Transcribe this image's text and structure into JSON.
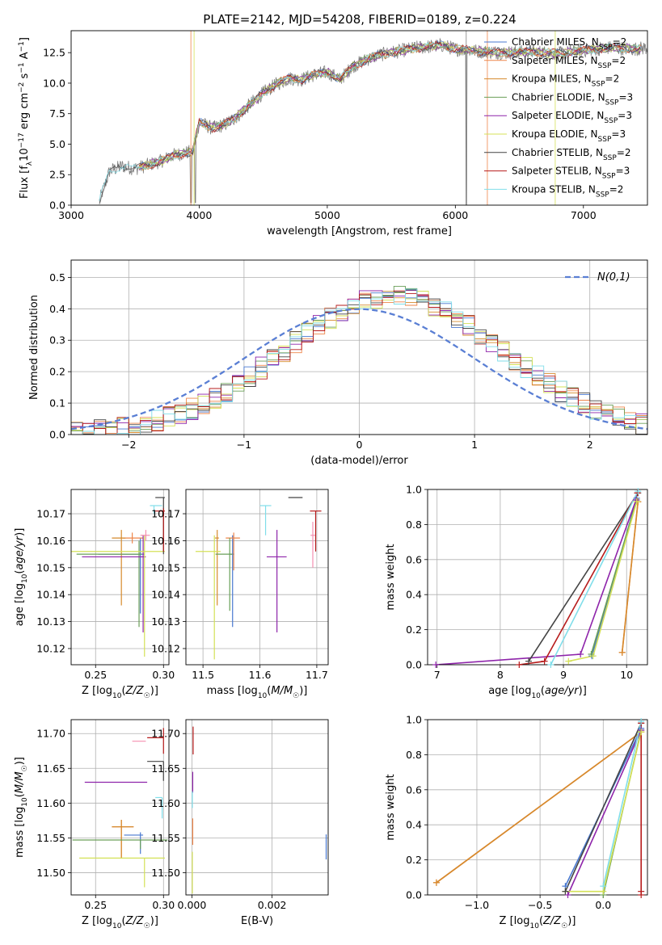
{
  "figure": {
    "title": "PLATE=2142, MJD=54208, FIBERID=0189, z=0.224"
  },
  "chart_data": [
    {
      "id": "spectrum",
      "type": "line",
      "title": "PLATE=2142, MJD=54208, FIBERID=0189, z=0.224",
      "xlabel": "wavelength [Angstrom, rest frame]",
      "ylabel": "Flux [f_λ 10^-17 erg cm^-2 s^-1 A^-1]",
      "xlim": [
        3000,
        7500
      ],
      "ylim": [
        0,
        14.3
      ],
      "xticks": [
        3000,
        4000,
        5000,
        6000,
        7000
      ],
      "yticks": [
        0.0,
        2.5,
        5.0,
        7.5,
        10.0,
        12.5
      ],
      "grid": false,
      "legend_position": "upper-right",
      "data_x": [
        3220,
        3300,
        3400,
        3500,
        3600,
        3700,
        3800,
        3900,
        3950,
        4000,
        4100,
        4200,
        4300,
        4400,
        4500,
        4600,
        4700,
        4800,
        4900,
        5000,
        5100,
        5200,
        5300,
        5400,
        5500,
        5600,
        5700,
        5800,
        5900,
        6000,
        6200,
        6400,
        6600,
        6800,
        7000,
        7200,
        7400,
        7500
      ],
      "data_y": [
        0.3,
        2.8,
        3.2,
        3.0,
        3.3,
        3.6,
        4.1,
        4.3,
        4.4,
        6.8,
        6.3,
        6.6,
        7.3,
        8.3,
        9.2,
        9.9,
        10.4,
        10.3,
        10.7,
        10.9,
        10.3,
        11.4,
        11.9,
        12.3,
        12.5,
        12.7,
        12.9,
        13.0,
        13.1,
        12.8,
        12.6,
        12.5,
        12.6,
        12.4,
        12.7,
        12.9,
        12.8,
        12.9
      ],
      "series": [
        {
          "name": "Chabrier MILES, N_SSP=2",
          "label": "Chabrier MILES, N",
          "sub": "SSP",
          "suffix": "=2",
          "color": "#4878d0",
          "start": 3530
        },
        {
          "name": "Salpeter MILES, N_SSP=2",
          "label": "Salpeter MILES, N",
          "sub": "SSP",
          "suffix": "=2",
          "color": "#ee854a",
          "start": 3530
        },
        {
          "name": "Kroupa MILES, N_SSP=2",
          "label": "Kroupa MILES, N",
          "sub": "SSP",
          "suffix": "=2",
          "color": "#d68a2c",
          "start": 3530
        },
        {
          "name": "Chabrier ELODIE, N_SSP=3",
          "label": "Chabrier ELODIE, N",
          "sub": "SSP",
          "suffix": "=3",
          "color": "#6a9f58",
          "start": 3530
        },
        {
          "name": "Salpeter ELODIE, N_SSP=3",
          "label": "Salpeter ELODIE, N",
          "sub": "SSP",
          "suffix": "=3",
          "color": "#8e24aa",
          "start": 3530
        },
        {
          "name": "Kroupa ELODIE, N_SSP=3",
          "label": "Kroupa ELODIE, N",
          "sub": "SSP",
          "suffix": "=3",
          "color": "#d4e157",
          "start": 3530
        },
        {
          "name": "Chabrier STELIB, N_SSP=2",
          "label": "Chabrier STELIB, N",
          "sub": "SSP",
          "suffix": "=2",
          "color": "#444444",
          "start": 3220
        },
        {
          "name": "Salpeter STELIB, N_SSP=3",
          "label": "Salpeter STELIB, N",
          "sub": "SSP",
          "suffix": "=3",
          "color": "#b71c1c",
          "start": 3530
        },
        {
          "name": "Kroupa STELIB, N_SSP=2",
          "label": "Kroupa STELIB, N",
          "sub": "SSP",
          "suffix": "=2",
          "color": "#80deea",
          "start": 3220
        }
      ]
    },
    {
      "id": "residuals",
      "type": "line",
      "xlabel": "(data-model)/error",
      "ylabel": "Normed distribution",
      "xlim": [
        -2.5,
        2.5
      ],
      "ylim": [
        0,
        0.555
      ],
      "xticks": [
        -2,
        -1,
        0,
        1,
        2
      ],
      "yticks": [
        0.0,
        0.1,
        0.2,
        0.3,
        0.4,
        0.5
      ],
      "grid": true,
      "legend_position": "upper-right",
      "normal_label": "N(0,1)",
      "normal_color": "#5a7fd4",
      "hist_colors": [
        "#4878d0",
        "#ee854a",
        "#d68a2c",
        "#6a9f58",
        "#8e24aa",
        "#d4e157",
        "#444444",
        "#b71c1c",
        "#80deea"
      ],
      "hist_peak": 0.44
    },
    {
      "id": "Z-age",
      "type": "scatter",
      "xlabel": "Z [log10(Z/Z☉)]",
      "ylabel": "age [log10(age/yr)]",
      "xlim": [
        0.232,
        0.304
      ],
      "ylim": [
        10.114,
        10.179
      ],
      "xticks": [
        0.25,
        0.3
      ],
      "xtick_labels": [
        "0.25",
        "0.30"
      ],
      "yticks": [
        10.12,
        10.13,
        10.14,
        10.15,
        10.16,
        10.17
      ],
      "grid": true,
      "points": [
        {
          "color": "#4878d0",
          "x": 0.283,
          "xerr": [
            0.031,
            0.003
          ],
          "y": 10.155,
          "yerr": [
            0.022,
            0.006
          ]
        },
        {
          "color": "#ee854a",
          "x": 0.277,
          "xerr": [
            0.007,
            0.008
          ],
          "y": 10.161,
          "yerr": [
            0.002,
            0.002
          ]
        },
        {
          "color": "#d68a2c",
          "x": 0.269,
          "xerr": [
            0.007,
            0.003
          ],
          "y": 10.161,
          "yerr": [
            0.025,
            0.003
          ]
        },
        {
          "color": "#6a9f58",
          "x": 0.282,
          "xerr": [
            0.046,
            0.002
          ],
          "y": 10.155,
          "yerr": [
            0.027,
            0.005
          ]
        },
        {
          "color": "#8e24aa",
          "x": 0.285,
          "xerr": [
            0.045,
            0.002
          ],
          "y": 10.154,
          "yerr": [
            0.028,
            0.008
          ]
        },
        {
          "color": "#d4e157",
          "x": 0.286,
          "xerr": [
            0.056,
            0.015
          ],
          "y": 10.156,
          "yerr": [
            0.039,
            0.006
          ]
        },
        {
          "color": "#444444",
          "x": 0.3,
          "xerr": [
            0.006,
            0.001
          ],
          "y": 10.176,
          "yerr": [
            0.021,
            0.0
          ]
        },
        {
          "color": "#b71c1c",
          "x": 0.3,
          "xerr": [
            0.006,
            0.001
          ],
          "y": 10.171,
          "yerr": [
            0.015,
            0.001
          ]
        },
        {
          "color": "#80deea",
          "x": 0.293,
          "xerr": [
            0.003,
            0.006
          ],
          "y": 10.173,
          "yerr": [
            0.003,
            0.0
          ]
        },
        {
          "color": "#f48fb1",
          "x": 0.287,
          "xerr": [
            0.004,
            0.003
          ],
          "y": 10.162,
          "yerr": [
            0.002,
            0.002
          ]
        }
      ]
    },
    {
      "id": "mass-age",
      "type": "scatter",
      "xlabel": "mass [log10(M/M☉)]",
      "ylabel": "",
      "xlim": [
        11.47,
        11.72
      ],
      "ylim": [
        10.114,
        10.179
      ],
      "xticks": [
        11.5,
        11.6,
        11.7
      ],
      "xtick_labels": [
        "11.5",
        "11.6",
        "11.7"
      ],
      "yticks": [
        10.12,
        10.13,
        10.14,
        10.15,
        10.16,
        10.17
      ],
      "grid": true,
      "points": [
        {
          "color": "#4878d0",
          "x": 11.552,
          "xerr": [
            0.006,
            0.003
          ],
          "y": 10.155,
          "yerr": [
            0.027,
            0.007
          ]
        },
        {
          "color": "#ee854a",
          "x": 11.554,
          "xerr": [
            0.014,
            0.011
          ],
          "y": 10.161,
          "yerr": [
            0.012,
            0.002
          ]
        },
        {
          "color": "#d68a2c",
          "x": 11.525,
          "xerr": [
            0.004,
            0.003
          ],
          "y": 10.161,
          "yerr": [
            0.025,
            0.003
          ]
        },
        {
          "color": "#6a9f58",
          "x": 11.547,
          "xerr": [
            0.025,
            0.005
          ],
          "y": 10.155,
          "yerr": [
            0.021,
            0.006
          ]
        },
        {
          "color": "#8e24aa",
          "x": 11.63,
          "xerr": [
            0.018,
            0.017
          ],
          "y": 10.154,
          "yerr": [
            0.028,
            0.01
          ]
        },
        {
          "color": "#d4e157",
          "x": 11.52,
          "xerr": [
            0.033,
            0.011
          ],
          "y": 10.156,
          "yerr": [
            0.04,
            0.006
          ]
        },
        {
          "color": "#444444",
          "x": 11.66,
          "xerr": [
            0.01,
            0.015
          ],
          "y": 10.176,
          "yerr": [
            0.0,
            0.0
          ]
        },
        {
          "color": "#b71c1c",
          "x": 11.698,
          "xerr": [
            0.01,
            0.01
          ],
          "y": 10.171,
          "yerr": [
            0.015,
            0.0
          ]
        },
        {
          "color": "#80deea",
          "x": 11.61,
          "xerr": [
            0.01,
            0.01
          ],
          "y": 10.173,
          "yerr": [
            0.011,
            0.0
          ]
        },
        {
          "color": "#f48fb1",
          "x": 11.693,
          "xerr": [
            0.004,
            0.004
          ],
          "y": 10.162,
          "yerr": [
            0.012,
            0.005
          ]
        }
      ]
    },
    {
      "id": "age-weight",
      "type": "line",
      "xlabel": "age [log10(age/yr)]",
      "ylabel": "mass weight",
      "xlim": [
        6.85,
        10.33
      ],
      "ylim": [
        0,
        1.0
      ],
      "xticks": [
        7,
        8,
        9,
        10
      ],
      "yticks": [
        0.0,
        0.2,
        0.4,
        0.6,
        0.8,
        1.0
      ],
      "grid": true,
      "series": [
        {
          "color": "#4878d0",
          "x": [
            9.45,
            10.16
          ],
          "y": [
            0.05,
            0.95
          ]
        },
        {
          "color": "#ee854a",
          "x": [
            9.93,
            10.18
          ],
          "y": [
            0.07,
            0.93
          ]
        },
        {
          "color": "#d68a2c",
          "x": [
            9.93,
            10.18
          ],
          "y": [
            0.07,
            0.93
          ]
        },
        {
          "color": "#6a9f58",
          "x": [
            9.44,
            10.16
          ],
          "y": [
            0.06,
            0.94
          ]
        },
        {
          "color": "#8e24aa",
          "x": [
            6.98,
            9.27,
            10.15
          ],
          "y": [
            0.0,
            0.06,
            0.94
          ]
        },
        {
          "color": "#d4e157",
          "x": [
            9.08,
            9.47,
            10.16
          ],
          "y": [
            0.02,
            0.05,
            0.93
          ]
        },
        {
          "color": "#444444",
          "x": [
            8.45,
            10.18
          ],
          "y": [
            0.02,
            0.98
          ]
        },
        {
          "color": "#b71c1c",
          "x": [
            8.3,
            8.7,
            10.17
          ],
          "y": [
            0.0,
            0.02,
            0.98
          ]
        },
        {
          "color": "#80deea",
          "x": [
            8.8,
            10.18
          ],
          "y": [
            0.0,
            0.99
          ]
        }
      ]
    },
    {
      "id": "Z-mass",
      "type": "scatter",
      "xlabel": "Z [log10(Z/Z☉)]",
      "ylabel": "mass [log10(M/M☉)]",
      "xlim": [
        0.232,
        0.304
      ],
      "ylim": [
        11.468,
        11.72
      ],
      "xticks": [
        0.25,
        0.3
      ],
      "xtick_labels": [
        "0.25",
        "0.30"
      ],
      "yticks": [
        11.5,
        11.55,
        11.6,
        11.65,
        11.7
      ],
      "grid": true,
      "points": [
        {
          "color": "#4878d0",
          "x": 0.283,
          "xerr": [
            0.012,
            0.002
          ],
          "y": 11.554,
          "yerr": [
            0.027,
            0.004
          ]
        },
        {
          "color": "#ee854a",
          "x": 0.269,
          "xerr": [
            0.007,
            0.009
          ],
          "y": 11.566,
          "yerr": [
            0.045,
            0.01
          ]
        },
        {
          "color": "#d68a2c",
          "x": 0.269,
          "xerr": [
            0.007,
            0.009
          ],
          "y": 11.566,
          "yerr": [
            0.045,
            0.01
          ]
        },
        {
          "color": "#6a9f58",
          "x": 0.283,
          "xerr": [
            0.05,
            0.02
          ],
          "y": 11.547,
          "yerr": [
            0.013,
            0.0
          ]
        },
        {
          "color": "#8e24aa",
          "x": 0.265,
          "xerr": [
            0.023,
            0.023
          ],
          "y": 11.63,
          "yerr": [
            0.0,
            0.0
          ]
        },
        {
          "color": "#d4e157",
          "x": 0.286,
          "xerr": [
            0.048,
            0.015
          ],
          "y": 11.521,
          "yerr": [
            0.042,
            0.0
          ]
        },
        {
          "color": "#444444",
          "x": 0.3,
          "xerr": [
            0.012,
            0.0
          ],
          "y": 11.66,
          "yerr": [
            0.028,
            0.0
          ]
        },
        {
          "color": "#b71c1c",
          "x": 0.3,
          "xerr": [
            0.012,
            0.0
          ],
          "y": 11.694,
          "yerr": [
            0.023,
            0.014
          ]
        },
        {
          "color": "#80deea",
          "x": 0.299,
          "xerr": [
            0.005,
            0.0
          ],
          "y": 11.608,
          "yerr": [
            0.03,
            0.0
          ]
        },
        {
          "color": "#f48fb1",
          "x": 0.285,
          "xerr": [
            0.008,
            0.002
          ],
          "y": 11.689,
          "yerr": [
            0.0,
            0.0
          ]
        }
      ]
    },
    {
      "id": "EBV-mass",
      "type": "scatter",
      "xlabel": "E(B-V)",
      "ylabel": "",
      "xlim": [
        -0.00015,
        0.0034
      ],
      "ylim": [
        11.468,
        11.72
      ],
      "xticks": [
        0.0,
        0.002
      ],
      "xtick_labels": [
        "0.000",
        "0.002"
      ],
      "yticks": [
        11.5,
        11.55,
        11.6,
        11.65,
        11.7
      ],
      "grid": true,
      "points": [
        {
          "color": "#4878d0",
          "x": 0.00335,
          "xerr": [
            0,
            0
          ],
          "y": 11.537,
          "yerr": [
            0.018,
            0.018
          ]
        },
        {
          "color": "#ee854a",
          "x": 2e-05,
          "xerr": [
            0,
            0
          ],
          "y": 11.56,
          "yerr": [
            0.02,
            0.018
          ]
        },
        {
          "color": "#d4e157",
          "x": 1e-05,
          "xerr": [
            0,
            0
          ],
          "y": 11.5,
          "yerr": [
            0.03,
            0.03
          ]
        },
        {
          "color": "#8e24aa",
          "x": 2e-05,
          "xerr": [
            0,
            0
          ],
          "y": 11.63,
          "yerr": [
            0.015,
            0.015
          ]
        },
        {
          "color": "#b71c1c",
          "x": 3e-05,
          "xerr": [
            0,
            0
          ],
          "y": 11.69,
          "yerr": [
            0.02,
            0.02
          ]
        },
        {
          "color": "#80deea",
          "x": 1e-05,
          "xerr": [
            0,
            0
          ],
          "y": 11.605,
          "yerr": [
            0.012,
            0.012
          ]
        }
      ]
    },
    {
      "id": "Z-weight",
      "type": "line",
      "xlabel": "Z [log10(Z/Z☉)]",
      "ylabel": "mass weight",
      "xlim": [
        -1.39,
        0.35
      ],
      "ylim": [
        0,
        1.0
      ],
      "xticks": [
        -1.0,
        -0.5,
        0.0
      ],
      "xtick_labels": [
        "−1.0",
        "−0.5",
        "0.0"
      ],
      "yticks": [
        0.0,
        0.2,
        0.4,
        0.6,
        0.8,
        1.0
      ],
      "grid": true,
      "series": [
        {
          "color": "#4878d0",
          "x": [
            -0.3,
            0.3
          ],
          "y": [
            0.05,
            0.95
          ]
        },
        {
          "color": "#ee854a",
          "x": [
            -1.32,
            0.3
          ],
          "y": [
            0.07,
            0.93
          ]
        },
        {
          "color": "#d68a2c",
          "x": [
            -1.32,
            0.3
          ],
          "y": [
            0.07,
            0.93
          ]
        },
        {
          "color": "#6a9f58",
          "x": [
            0.0,
            0.3
          ],
          "y": [
            0.0,
            0.94
          ]
        },
        {
          "color": "#8e24aa",
          "x": [
            -0.28,
            0.3
          ],
          "y": [
            0.0,
            0.94
          ]
        },
        {
          "color": "#d4e157",
          "x": [
            -0.3,
            0.0,
            0.3
          ],
          "y": [
            0.02,
            0.02,
            0.93
          ]
        },
        {
          "color": "#444444",
          "x": [
            -0.3,
            0.3
          ],
          "y": [
            0.02,
            0.98
          ]
        },
        {
          "color": "#b71c1c",
          "x": [
            0.3,
            0.3,
            0.3
          ],
          "y": [
            0.0,
            0.02,
            0.98
          ]
        },
        {
          "color": "#80deea",
          "x": [
            0.0,
            0.3
          ],
          "y": [
            0.05,
            0.99
          ]
        }
      ]
    }
  ]
}
